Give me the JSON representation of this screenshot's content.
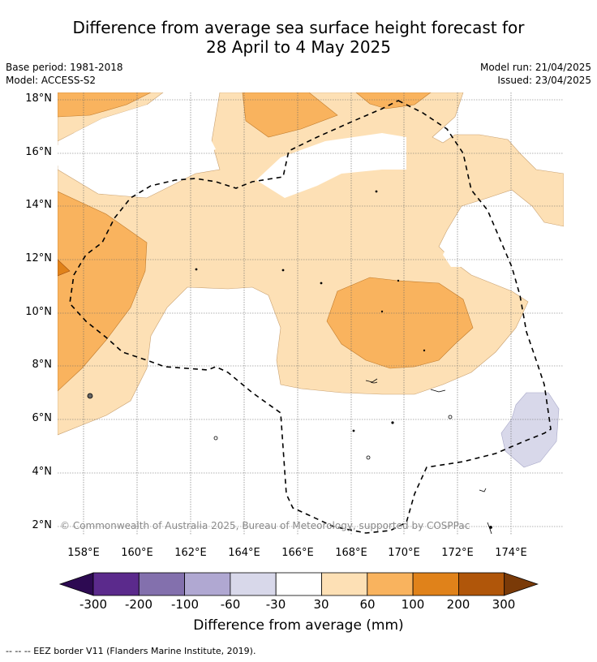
{
  "title_line1": "Difference from average sea surface height forecast for",
  "title_line2": "28 April to 4 May 2025",
  "base_period": "Base period: 1981-2018",
  "model": "Model: ACCESS-S2",
  "model_run": "Model run: 21/04/2025",
  "issued": "Issued: 23/04/2025",
  "copyright": "© Commonwealth of Australia 2025, Bureau of Meteorology, supported by COSPPac",
  "x_ticks": [
    "158°E",
    "160°E",
    "162°E",
    "164°E",
    "166°E",
    "168°E",
    "170°E",
    "172°E",
    "174°E"
  ],
  "y_ticks": [
    "18°N",
    "16°N",
    "14°N",
    "12°N",
    "10°N",
    "8°N",
    "6°N",
    "4°N",
    "2°N"
  ],
  "colorbar": {
    "title": "Difference from average (mm)",
    "labels": [
      "-300",
      "-200",
      "-100",
      "-60",
      "-30",
      "30",
      "60",
      "100",
      "200",
      "300"
    ],
    "colors": [
      "#2d0a52",
      "#5b2a8c",
      "#8370ad",
      "#b0a8d2",
      "#d8d8ea",
      "#ffffff",
      "#fde0b5",
      "#f9b35e",
      "#e0821a",
      "#b0560a",
      "#7a3a08"
    ]
  },
  "footnote": "--  --  -- EEZ border V11 (Flanders Marine Institute, 2019)."
}
